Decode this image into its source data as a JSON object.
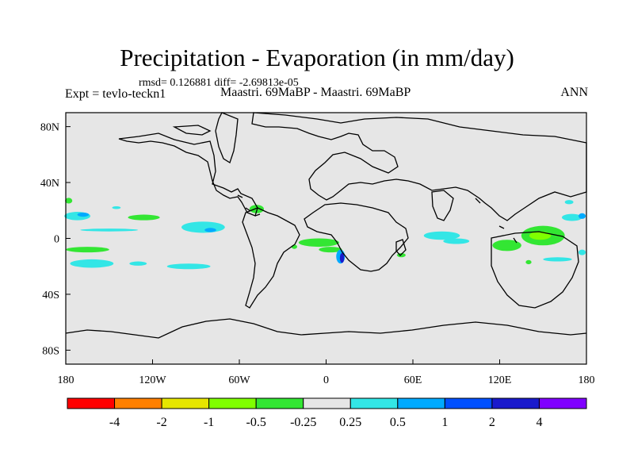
{
  "title": "Precipitation - Evaporation (in mm/day)",
  "stats": "rmsd= 0.126881 diff= -2.69813e-05",
  "expt": "Expt = tevlo-teckn1",
  "comparison": "Maastri.  69MaBP - Maastri.  69MaBP",
  "season": "ANN",
  "map": {
    "projection": "cylindrical-equidistant",
    "lon_range": [
      -180,
      180
    ],
    "lat_range": [
      -90,
      90
    ],
    "background_color": "#e6e6e6",
    "coastline_color": "#000000",
    "x_ticks": [
      {
        "lon": -180,
        "label": "180"
      },
      {
        "lon": -120,
        "label": "120W"
      },
      {
        "lon": -60,
        "label": "60W"
      },
      {
        "lon": 0,
        "label": "0"
      },
      {
        "lon": 60,
        "label": "60E"
      },
      {
        "lon": 120,
        "label": "120E"
      },
      {
        "lon": 180,
        "label": "180"
      }
    ],
    "y_ticks": [
      {
        "lat": 80,
        "label": "80N"
      },
      {
        "lat": 40,
        "label": "40N"
      },
      {
        "lat": 0,
        "label": "0"
      },
      {
        "lat": -40,
        "label": "40S"
      },
      {
        "lat": -80,
        "label": "80S"
      }
    ]
  },
  "colorbar": {
    "colors": [
      "#ff0000",
      "#ff8000",
      "#e6e600",
      "#80ff00",
      "#33e633",
      "#e6e6e6",
      "#33e6e6",
      "#00aaff",
      "#0050ff",
      "#1a1acc",
      "#8000ff"
    ],
    "labels": [
      "-4",
      "-2",
      "-1",
      "-0.5",
      "-0.25",
      "0.25",
      "0.5",
      "1",
      "2",
      "4"
    ]
  },
  "fields": [
    {
      "lon": -178,
      "lat": 27,
      "w": 5,
      "h": 4,
      "color": "#33e633"
    },
    {
      "lon": -172,
      "lat": 16,
      "w": 18,
      "h": 6,
      "color": "#33e6e6"
    },
    {
      "lon": -168,
      "lat": 17,
      "w": 8,
      "h": 3,
      "color": "#00aaff"
    },
    {
      "lon": -145,
      "lat": 22,
      "w": 6,
      "h": 2,
      "color": "#33e6e6"
    },
    {
      "lon": -126,
      "lat": 15,
      "w": 22,
      "h": 4,
      "color": "#33e633"
    },
    {
      "lon": -150,
      "lat": 6,
      "w": 40,
      "h": 2,
      "color": "#33e6e6"
    },
    {
      "lon": -85,
      "lat": 8,
      "w": 30,
      "h": 8,
      "color": "#33e6e6"
    },
    {
      "lon": -80,
      "lat": 6,
      "w": 8,
      "h": 3,
      "color": "#00aaff"
    },
    {
      "lon": -48,
      "lat": 21,
      "w": 10,
      "h": 6,
      "color": "#33e633"
    },
    {
      "lon": -165,
      "lat": -8,
      "w": 30,
      "h": 4,
      "color": "#33e633"
    },
    {
      "lon": -162,
      "lat": -18,
      "w": 30,
      "h": 6,
      "color": "#33e6e6"
    },
    {
      "lon": -130,
      "lat": -18,
      "w": 12,
      "h": 3,
      "color": "#33e6e6"
    },
    {
      "lon": -95,
      "lat": -20,
      "w": 30,
      "h": 4,
      "color": "#33e6e6"
    },
    {
      "lon": -5,
      "lat": -3,
      "w": 28,
      "h": 6,
      "color": "#33e633"
    },
    {
      "lon": 3,
      "lat": -8,
      "w": 16,
      "h": 4,
      "color": "#33e633"
    },
    {
      "lon": 10,
      "lat": -13,
      "w": 6,
      "h": 10,
      "color": "#00aaff"
    },
    {
      "lon": 11,
      "lat": -14,
      "w": 3,
      "h": 7,
      "color": "#1a1acc"
    },
    {
      "lon": -22,
      "lat": -6,
      "w": 4,
      "h": 3,
      "color": "#33e633"
    },
    {
      "lon": 52,
      "lat": -12,
      "w": 6,
      "h": 3,
      "color": "#33e633"
    },
    {
      "lon": 80,
      "lat": 2,
      "w": 25,
      "h": 6,
      "color": "#33e6e6"
    },
    {
      "lon": 90,
      "lat": -2,
      "w": 18,
      "h": 4,
      "color": "#33e6e6"
    },
    {
      "lon": 125,
      "lat": -5,
      "w": 20,
      "h": 8,
      "color": "#33e633"
    },
    {
      "lon": 150,
      "lat": 2,
      "w": 30,
      "h": 14,
      "color": "#33e633"
    },
    {
      "lon": 148,
      "lat": 2,
      "w": 15,
      "h": 6,
      "color": "#80ff00"
    },
    {
      "lon": 170,
      "lat": 15,
      "w": 14,
      "h": 5,
      "color": "#33e6e6"
    },
    {
      "lon": 177,
      "lat": 16,
      "w": 5,
      "h": 4,
      "color": "#00aaff"
    },
    {
      "lon": 160,
      "lat": -15,
      "w": 20,
      "h": 3,
      "color": "#33e6e6"
    },
    {
      "lon": 140,
      "lat": -17,
      "w": 4,
      "h": 3,
      "color": "#33e633"
    },
    {
      "lon": 168,
      "lat": 26,
      "w": 6,
      "h": 3,
      "color": "#33e6e6"
    },
    {
      "lon": 177,
      "lat": -10,
      "w": 5,
      "h": 4,
      "color": "#33e6e6"
    }
  ]
}
